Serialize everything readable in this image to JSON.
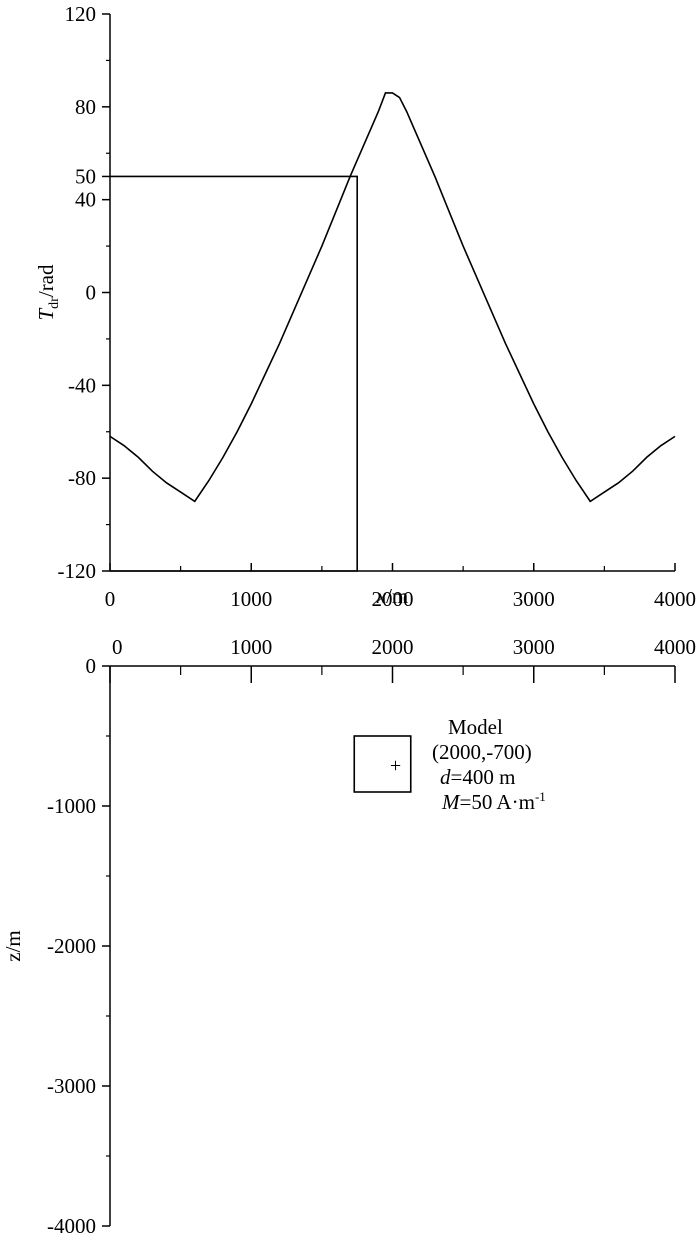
{
  "chart_data": [
    {
      "type": "line",
      "xlabel": {
        "var": "x",
        "unit": "/m"
      },
      "ylabel": {
        "var": "T",
        "sub": "dr",
        "unit": "/rad"
      },
      "xlim": [
        0,
        4000
      ],
      "ylim": [
        -120,
        120
      ],
      "x_ticks": [
        0,
        1000,
        2000,
        3000,
        4000
      ],
      "y_ticks": [
        120,
        80,
        50,
        40,
        0,
        -40,
        -80,
        -120
      ],
      "series": [
        {
          "x": [
            0,
            100,
            200,
            300,
            400,
            500,
            600,
            700,
            800,
            900,
            1000,
            1100,
            1200,
            1300,
            1400,
            1500,
            1600,
            1700,
            1800,
            1900,
            1950,
            2000,
            2050,
            2100,
            2200,
            2300,
            2400,
            2500,
            2600,
            2700,
            2800,
            2900,
            3000,
            3100,
            3200,
            3300,
            3400,
            3500,
            3600,
            3700,
            3800,
            3900,
            4000
          ],
          "y": [
            -62,
            -66,
            -71,
            -77,
            -82,
            -86,
            -90,
            -81,
            -71,
            -60,
            -48,
            -35,
            -22,
            -8,
            6,
            20,
            35,
            50,
            64,
            78,
            86,
            86,
            84,
            78,
            64,
            50,
            35,
            20,
            6,
            -8,
            -22,
            -35,
            -48,
            -60,
            -71,
            -81,
            -90,
            -86,
            -82,
            -77,
            -71,
            -66,
            -62
          ]
        }
      ],
      "annotations": [
        {
          "type": "rect",
          "x0": 0,
          "x1": 1750,
          "y0": -120,
          "y1": 50
        }
      ]
    },
    {
      "type": "scatter",
      "xlabel": "",
      "ylabel": "z/m",
      "xlim": [
        0,
        4000
      ],
      "ylim": [
        -4000,
        0
      ],
      "x_ticks": [
        0,
        1000,
        2000,
        3000,
        4000
      ],
      "y_ticks": [
        0,
        -1000,
        -2000,
        -3000,
        -4000
      ],
      "model": {
        "center_x": 2000,
        "center_z": -700,
        "size": 400,
        "title": "Model",
        "coords": "(2000,-700)",
        "d_var": "d",
        "d_value": "=400 m",
        "m_var": "M",
        "m_value": "=50 A·m",
        "m_exp": "-1"
      }
    }
  ]
}
